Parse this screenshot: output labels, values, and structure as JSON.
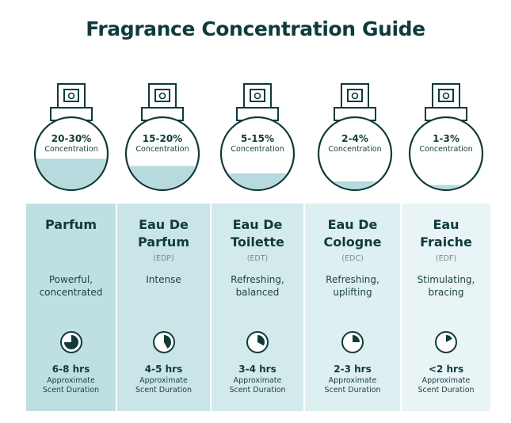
{
  "title": "Fragrance Concentration Guide",
  "colors": {
    "dark": "#0f3b3a",
    "liquid": "#b6dade",
    "col_bgs": [
      "#bfe0e3",
      "#c9e5e8",
      "#d3eaec",
      "#ddeff1",
      "#e8f4f5"
    ]
  },
  "bottles": [
    {
      "percent": "20-30%",
      "label": "Concentration",
      "fill_level": 0.43
    },
    {
      "percent": "15-20%",
      "label": "Concentration",
      "fill_level": 0.33
    },
    {
      "percent": "5-15%",
      "label": "Concentration",
      "fill_level": 0.23
    },
    {
      "percent": "2-4%",
      "label": "Concentration",
      "fill_level": 0.12
    },
    {
      "percent": "1-3%",
      "label": "Concentration",
      "fill_level": 0.07
    }
  ],
  "types": [
    {
      "name_line1": "Parfum",
      "name_line2": "",
      "abbr": "",
      "desc_line1": "Powerful,",
      "desc_line2": "concentrated",
      "duration": "6-8 hrs",
      "duration_label1": "Approximate",
      "duration_label2": "Scent Duration",
      "clock_fraction": 0.75,
      "clock_icon": "clock-three-quarter-icon"
    },
    {
      "name_line1": "Eau De",
      "name_line2": "Parfum",
      "abbr": "(EDP)",
      "desc_line1": "Intense",
      "desc_line2": "",
      "duration": "4-5 hrs",
      "duration_label1": "Approximate",
      "duration_label2": "Scent Duration",
      "clock_fraction": 0.42,
      "clock_icon": "clock-five-twelfths-icon"
    },
    {
      "name_line1": "Eau De",
      "name_line2": "Toilette",
      "abbr": "(EDT)",
      "desc_line1": "Refreshing,",
      "desc_line2": "balanced",
      "duration": "3-4 hrs",
      "duration_label1": "Approximate",
      "duration_label2": "Scent Duration",
      "clock_fraction": 0.33,
      "clock_icon": "clock-one-third-icon"
    },
    {
      "name_line1": "Eau De",
      "name_line2": "Cologne",
      "abbr": "(EDC)",
      "desc_line1": "Refreshing,",
      "desc_line2": "uplifting",
      "duration": "2-3 hrs",
      "duration_label1": "Approximate",
      "duration_label2": "Scent Duration",
      "clock_fraction": 0.25,
      "clock_icon": "clock-quarter-icon"
    },
    {
      "name_line1": "Eau",
      "name_line2": "Fraiche",
      "abbr": "(EDF)",
      "desc_line1": "Stimulating,",
      "desc_line2": "bracing",
      "duration": "<2 hrs",
      "duration_label1": "Approximate",
      "duration_label2": "Scent Duration",
      "clock_fraction": 0.17,
      "clock_icon": "clock-one-sixth-icon"
    }
  ]
}
